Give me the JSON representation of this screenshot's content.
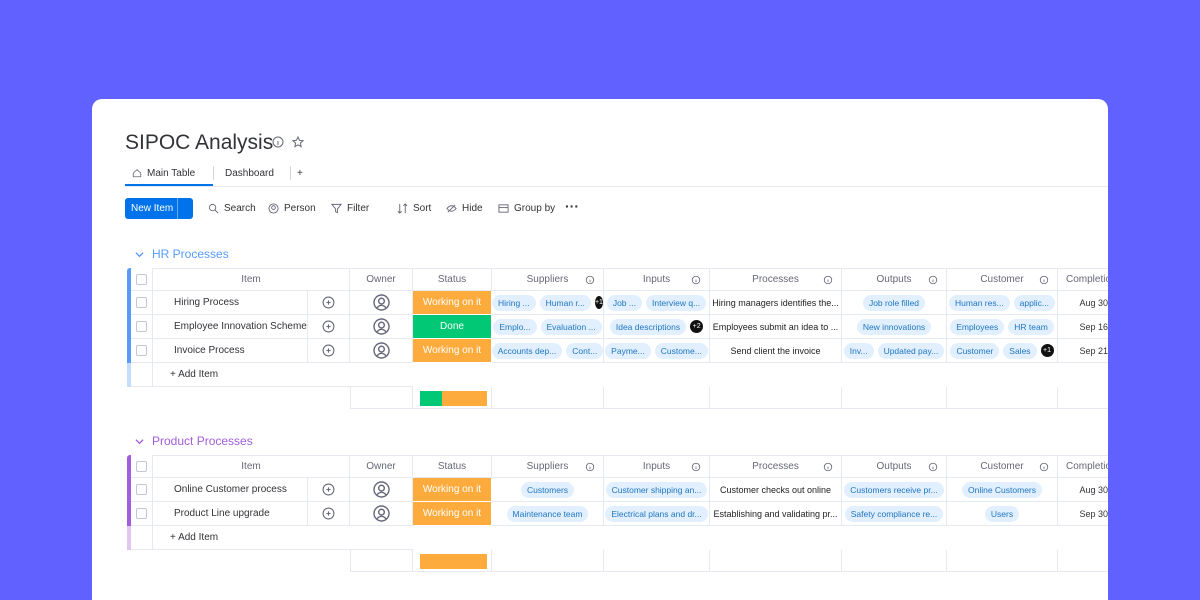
{
  "header": {
    "title": "SIPOC Analysis",
    "tabs": [
      "Main Table",
      "Dashboard",
      "+"
    ]
  },
  "toolbar": {
    "new_item": "New Item",
    "buttons": [
      "Search",
      "Person",
      "Filter",
      "Sort",
      "Hide",
      "Group by"
    ]
  },
  "columns": [
    "Item",
    "Owner",
    "Status",
    "Suppliers",
    "Inputs",
    "Processes",
    "Outputs",
    "Customer",
    "Completion"
  ],
  "groups": [
    {
      "title": "HR Processes",
      "color": "#579bfc",
      "add_item": "+ Add Item",
      "rows": [
        {
          "item": "Hiring Process",
          "status": "Working on it",
          "status_color": "#fdab3d",
          "suppliers": [
            "Hiring ...",
            "Human r..."
          ],
          "suppliers_more": "+1",
          "inputs": [
            "Job ...",
            "Interview q..."
          ],
          "process": "Hiring managers identifies the...",
          "outputs": [
            "Job role filled"
          ],
          "customer": [
            "Human res...",
            "applic..."
          ],
          "completion": "Aug 30"
        },
        {
          "item": "Employee Innovation Scheme",
          "status": "Done",
          "status_color": "#00c875",
          "suppliers": [
            "Emplo...",
            "Evaluation ..."
          ],
          "inputs": [
            "Idea descriptions"
          ],
          "inputs_more": "+2",
          "process": "Employees submit an idea to ...",
          "outputs": [
            "New innovations"
          ],
          "customer": [
            "Employees",
            "HR team"
          ],
          "completion": "Sep 16"
        },
        {
          "item": "Invoice Process",
          "status": "Working on it",
          "status_color": "#fdab3d",
          "suppliers": [
            "Accounts dep...",
            "Cont..."
          ],
          "inputs": [
            "Payme...",
            "Custome..."
          ],
          "process": "Send client the invoice",
          "outputs": [
            "Inv...",
            "Updated pay..."
          ],
          "customer": [
            "Customer",
            "Sales"
          ],
          "customer_more": "+1",
          "completion": "Sep 21"
        }
      ]
    },
    {
      "title": "Product Processes",
      "color": "#a25ddc",
      "add_item": "+ Add Item",
      "rows": [
        {
          "item": "Online Customer process",
          "status": "Working on it",
          "status_color": "#fdab3d",
          "suppliers": [
            "Customers"
          ],
          "inputs": [
            "Customer shipping an..."
          ],
          "process": "Customer checks out online",
          "outputs": [
            "Customers receive pr..."
          ],
          "customer": [
            "Online Customers"
          ],
          "completion": "Aug 30"
        },
        {
          "item": "Product Line upgrade",
          "status": "Working on it",
          "status_color": "#fdab3d",
          "suppliers": [
            "Maintenance team"
          ],
          "inputs": [
            "Electrical plans and dr..."
          ],
          "process": "Establishing and validating pr...",
          "outputs": [
            "Safety compliance re..."
          ],
          "customer": [
            "Users"
          ],
          "completion": "Sep 30"
        }
      ]
    }
  ]
}
